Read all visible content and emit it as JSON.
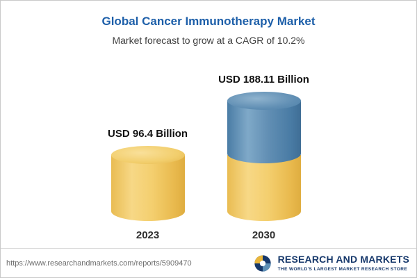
{
  "header": {
    "title": "Global Cancer Immunotherapy Market",
    "subtitle": "Market forecast to grow at a CAGR of 10.2%"
  },
  "chart_data": {
    "type": "bar",
    "style": "3d-cylinder",
    "categories": [
      "2023",
      "2030"
    ],
    "values": [
      96.4,
      188.11
    ],
    "value_labels": [
      "USD 96.4 Billion",
      "USD 188.11 Billion"
    ],
    "unit": "USD Billion",
    "title": "Global Cancer Immunotherapy Market",
    "subtitle": "Market forecast to grow at a CAGR of 10.2%",
    "cagr": "10.2%",
    "legend": "none",
    "colors": {
      "bar_2023": "#EFC75E",
      "bar_2030_base": "#EFC75E",
      "bar_2030_growth": "#5E8FB5"
    },
    "notes": "2030 cylinder is stacked: gold base equal to 2023 value with blue growth portion on top"
  },
  "footer": {
    "url": "https://www.researchandmarkets.com/reports/5909470",
    "brand": "RESEARCH AND MARKETS",
    "tagline": "THE WORLD'S LARGEST MARKET RESEARCH STORE"
  }
}
